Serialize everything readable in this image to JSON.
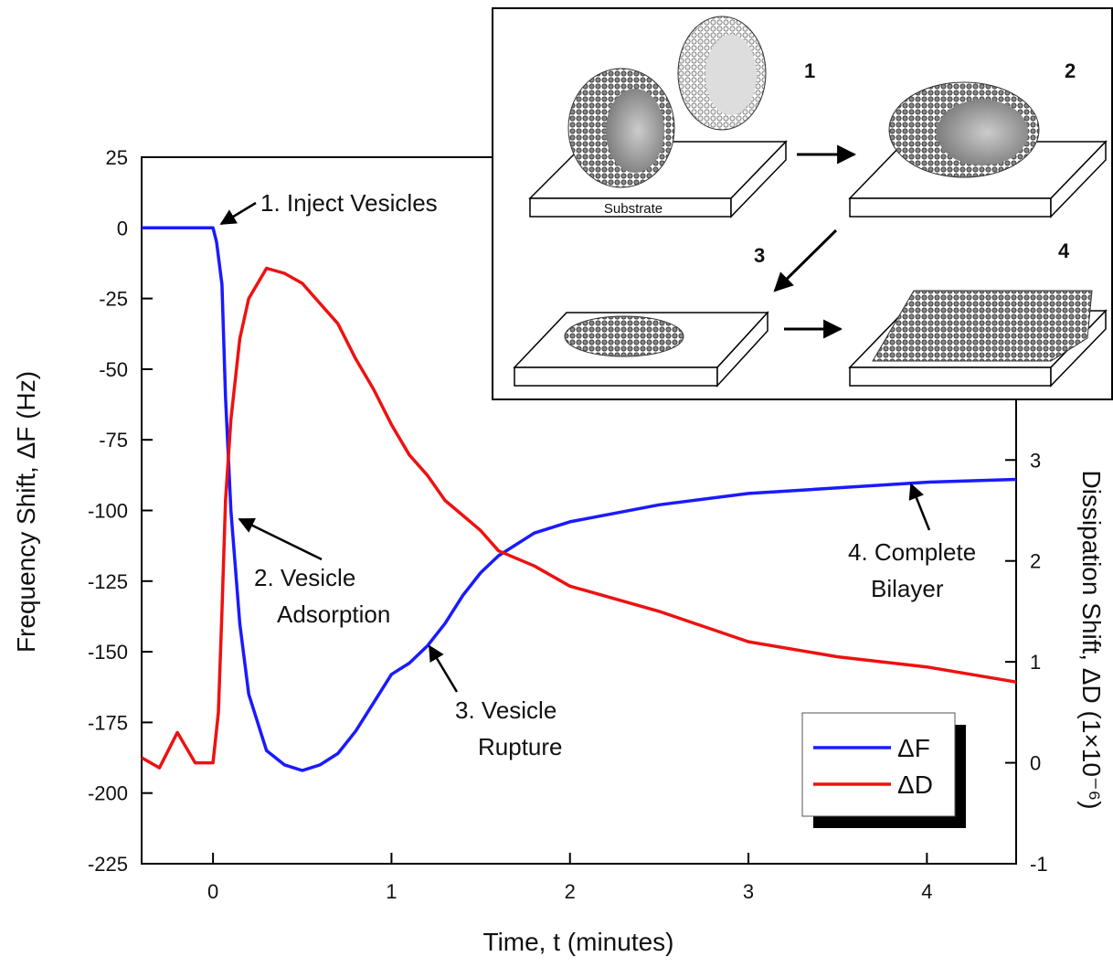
{
  "chart_data": {
    "type": "line",
    "x_label": "Time, t (minutes)",
    "y_label": "Frequency Shift, ΔF (Hz)",
    "y2_label": "Dissipation Shift, ΔD (1×10⁻⁶)",
    "xlim": [
      -0.4,
      4.5
    ],
    "xticks": [
      0,
      1,
      2,
      3,
      4
    ],
    "ylim": [
      -225,
      25
    ],
    "yticks": [
      -225,
      -200,
      -175,
      -150,
      -125,
      -100,
      -75,
      -50,
      -25,
      0,
      25
    ],
    "y2lim": [
      -1,
      6
    ],
    "y2ticks": [
      -1,
      0,
      1,
      2,
      3
    ],
    "legend": "lower right",
    "series": [
      {
        "name": "ΔF",
        "color": "#1a1aff",
        "axis": "y",
        "x": [
          -0.4,
          -0.2,
          0,
          0.02,
          0.05,
          0.07,
          0.1,
          0.15,
          0.2,
          0.3,
          0.4,
          0.5,
          0.6,
          0.7,
          0.8,
          0.9,
          1.0,
          1.1,
          1.2,
          1.3,
          1.4,
          1.5,
          1.6,
          1.8,
          2.0,
          2.5,
          3.0,
          3.5,
          4.0,
          4.5
        ],
        "values": [
          0,
          0,
          0,
          -5,
          -20,
          -60,
          -100,
          -140,
          -165,
          -185,
          -190,
          -192,
          -190,
          -186,
          -178,
          -168,
          -158,
          -154,
          -148,
          -140,
          -130,
          -122,
          -116,
          -108,
          -104,
          -98,
          -94,
          -92,
          -90,
          -89
        ]
      },
      {
        "name": "ΔD",
        "color": "#ee1111",
        "axis": "y2",
        "x": [
          -0.4,
          -0.3,
          -0.2,
          -0.1,
          0,
          0.03,
          0.05,
          0.07,
          0.1,
          0.15,
          0.2,
          0.3,
          0.4,
          0.5,
          0.6,
          0.7,
          0.8,
          0.9,
          1.0,
          1.1,
          1.2,
          1.3,
          1.4,
          1.5,
          1.6,
          1.8,
          2.0,
          2.5,
          3.0,
          3.5,
          4.0,
          4.5
        ],
        "values": [
          0.05,
          -0.05,
          0.3,
          0,
          0,
          0.5,
          1.5,
          2.6,
          3.4,
          4.2,
          4.6,
          4.9,
          4.85,
          4.75,
          4.55,
          4.35,
          4.0,
          3.7,
          3.35,
          3.05,
          2.85,
          2.6,
          2.45,
          2.3,
          2.1,
          1.95,
          1.75,
          1.5,
          1.2,
          1.05,
          0.95,
          0.8
        ]
      }
    ],
    "annotations": [
      {
        "lines": [
          "1. Inject Vesicles"
        ]
      },
      {
        "lines": [
          "2. Vesicle",
          "Adsorption"
        ]
      },
      {
        "lines": [
          "3. Vesicle",
          "Rupture"
        ]
      },
      {
        "lines": [
          "4. Complete",
          "Bilayer"
        ]
      }
    ]
  },
  "inset": {
    "steps": [
      "1",
      "2",
      "3",
      "4"
    ],
    "substrate_label": "Substrate"
  }
}
